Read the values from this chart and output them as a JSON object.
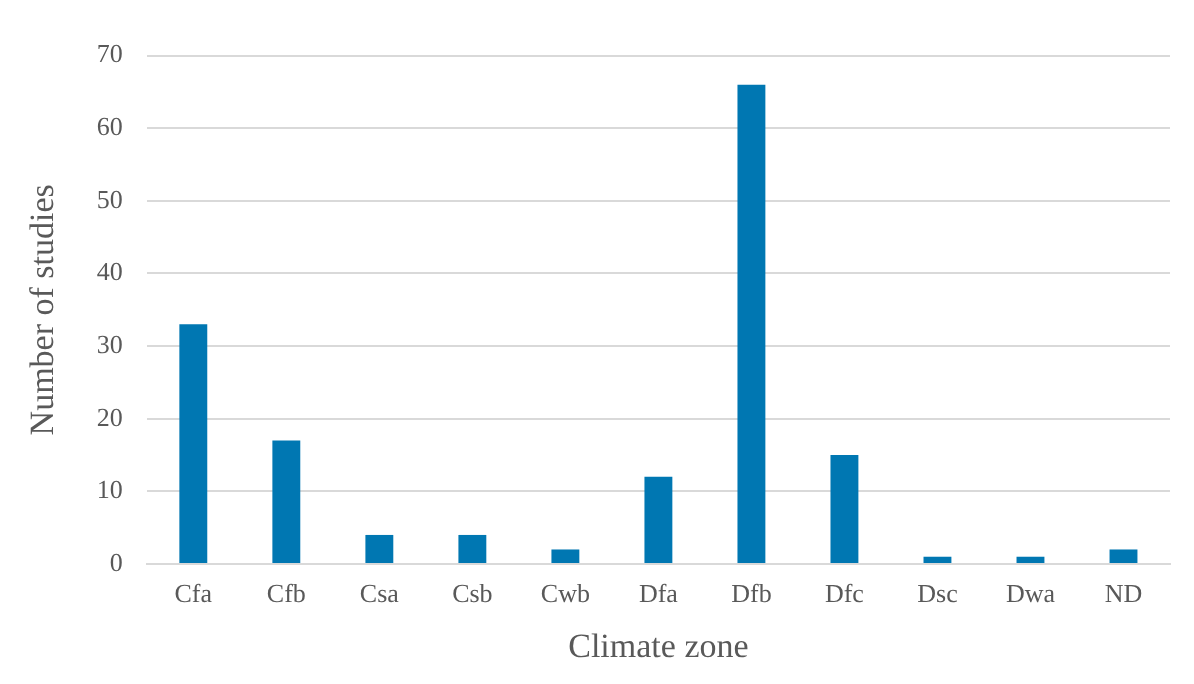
{
  "chart_data": {
    "type": "bar",
    "xlabel": "Climate zone",
    "ylabel": "Number of studies",
    "categories": [
      "Cfa",
      "Cfb",
      "Csa",
      "Csb",
      "Cwb",
      "Dfa",
      "Dfb",
      "Dfc",
      "Dsc",
      "Dwa",
      "ND"
    ],
    "values": [
      33,
      17,
      4,
      4,
      2,
      12,
      66,
      15,
      1,
      1,
      2
    ],
    "color": "#0077b2",
    "ylim": [
      0,
      70
    ],
    "yticks": [
      0,
      10,
      20,
      30,
      40,
      50,
      60,
      70
    ],
    "grid": "y"
  }
}
